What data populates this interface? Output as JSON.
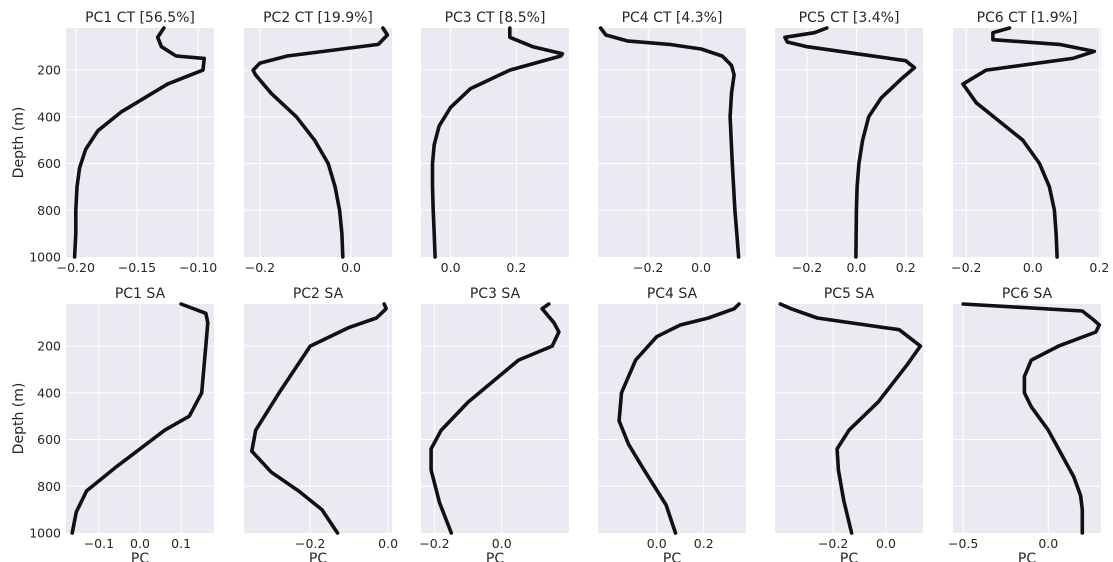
{
  "chart_data": [
    {
      "type": "line",
      "title": "PC1 CT [56.5%]",
      "xlabel": "",
      "ylabel": "Depth (m)",
      "xlim": [
        -0.208,
        -0.087
      ],
      "ylim": [
        1000,
        20
      ],
      "yinvert": true,
      "xticks": [
        {
          "v": -0.2,
          "label": "−0.20"
        },
        {
          "v": -0.15,
          "label": "−0.15"
        },
        {
          "v": -0.1,
          "label": "−0.10"
        }
      ],
      "yticks": [
        {
          "v": 200,
          "label": "200"
        },
        {
          "v": 400,
          "label": "400"
        },
        {
          "v": 600,
          "label": "600"
        },
        {
          "v": 800,
          "label": "800"
        },
        {
          "v": 1000,
          "label": "1000"
        }
      ],
      "x": [
        -0.128,
        -0.133,
        -0.13,
        -0.118,
        -0.095,
        -0.096,
        -0.125,
        -0.163,
        -0.182,
        -0.192,
        -0.197,
        -0.199,
        -0.2,
        -0.2,
        -0.201
      ],
      "depth": [
        20,
        60,
        100,
        140,
        150,
        200,
        260,
        380,
        460,
        540,
        620,
        700,
        800,
        900,
        1000
      ]
    },
    {
      "type": "line",
      "title": "PC2 CT [19.9%]",
      "xlabel": "",
      "ylabel": "",
      "xlim": [
        -0.235,
        0.09
      ],
      "ylim": [
        1000,
        20
      ],
      "yinvert": true,
      "xticks": [
        {
          "v": -0.2,
          "label": "−0.2"
        },
        {
          "v": 0,
          "label": "0.0"
        }
      ],
      "yticks": [],
      "x": [
        0.07,
        0.08,
        0.06,
        -0.14,
        -0.2,
        -0.215,
        -0.21,
        -0.175,
        -0.12,
        -0.08,
        -0.05,
        -0.035,
        -0.025,
        -0.02,
        -0.018
      ],
      "depth": [
        20,
        50,
        90,
        140,
        170,
        200,
        220,
        300,
        400,
        500,
        600,
        700,
        800,
        900,
        1000
      ]
    },
    {
      "type": "line",
      "title": "PC3 CT [8.5%]",
      "xlabel": "",
      "ylabel": "",
      "xlim": [
        -0.09,
        0.36
      ],
      "ylim": [
        1000,
        20
      ],
      "yinvert": true,
      "xticks": [
        {
          "v": 0,
          "label": "0.0"
        },
        {
          "v": 0.2,
          "label": "0.2"
        }
      ],
      "yticks": [],
      "x": [
        0.18,
        0.18,
        0.25,
        0.34,
        0.335,
        0.18,
        0.06,
        0.0,
        -0.035,
        -0.05,
        -0.055,
        -0.055,
        -0.053,
        -0.05,
        -0.047
      ],
      "depth": [
        20,
        60,
        100,
        130,
        140,
        200,
        280,
        360,
        440,
        520,
        600,
        700,
        800,
        900,
        1000
      ]
    },
    {
      "type": "line",
      "title": "PC4 CT [4.3%]",
      "xlabel": "",
      "ylabel": "",
      "xlim": [
        -0.39,
        0.17
      ],
      "ylim": [
        1000,
        20
      ],
      "yinvert": true,
      "xticks": [
        {
          "v": -0.2,
          "label": "−0.2"
        },
        {
          "v": 0,
          "label": "0.0"
        }
      ],
      "yticks": [],
      "x": [
        -0.38,
        -0.36,
        -0.28,
        -0.12,
        0.0,
        0.08,
        0.115,
        0.125,
        0.12,
        0.115,
        0.11,
        0.118,
        0.128,
        0.135,
        0.142
      ],
      "depth": [
        20,
        50,
        75,
        90,
        110,
        140,
        180,
        220,
        260,
        300,
        400,
        600,
        800,
        900,
        1000
      ]
    },
    {
      "type": "line",
      "title": "PC5 CT [3.4%]",
      "xlabel": "",
      "ylabel": "",
      "xlim": [
        -0.33,
        0.27
      ],
      "ylim": [
        1000,
        20
      ],
      "yinvert": true,
      "xticks": [
        {
          "v": -0.2,
          "label": "−0.2"
        },
        {
          "v": 0,
          "label": "0.0"
        },
        {
          "v": 0.2,
          "label": "0.2"
        }
      ],
      "yticks": [],
      "x": [
        -0.12,
        -0.17,
        -0.29,
        -0.28,
        -0.2,
        0.0,
        0.2,
        0.235,
        0.18,
        0.1,
        0.05,
        0.025,
        0.01,
        0.003,
        0.0,
        -0.002
      ],
      "depth": [
        20,
        40,
        60,
        80,
        100,
        130,
        160,
        190,
        240,
        320,
        400,
        500,
        600,
        700,
        800,
        1000
      ]
    },
    {
      "type": "line",
      "title": "PC6 CT [1.9%]",
      "xlabel": "",
      "ylabel": "",
      "xlim": [
        -0.24,
        0.205
      ],
      "ylim": [
        1000,
        20
      ],
      "yinvert": true,
      "xticks": [
        {
          "v": -0.2,
          "label": "−0.2"
        },
        {
          "v": 0,
          "label": "0.0"
        },
        {
          "v": 0.2,
          "label": "0.2"
        }
      ],
      "yticks": [],
      "x": [
        -0.07,
        -0.12,
        -0.12,
        0.08,
        0.185,
        0.12,
        -0.14,
        -0.21,
        -0.17,
        -0.1,
        -0.03,
        0.02,
        0.05,
        0.065,
        0.07,
        0.073
      ],
      "depth": [
        20,
        40,
        70,
        90,
        120,
        150,
        200,
        260,
        340,
        420,
        500,
        600,
        700,
        800,
        900,
        1000
      ]
    },
    {
      "type": "line",
      "title": "PC1 SA",
      "xlabel": "PC",
      "ylabel": "Depth (m)",
      "xlim": [
        -0.18,
        0.18
      ],
      "ylim": [
        1000,
        20
      ],
      "yinvert": true,
      "xticks": [
        {
          "v": -0.1,
          "label": "−0.1"
        },
        {
          "v": 0,
          "label": "0.0"
        },
        {
          "v": 0.1,
          "label": "0.1"
        }
      ],
      "yticks": [
        {
          "v": 200,
          "label": "200"
        },
        {
          "v": 400,
          "label": "400"
        },
        {
          "v": 600,
          "label": "600"
        },
        {
          "v": 800,
          "label": "800"
        },
        {
          "v": 1000,
          "label": "1000"
        }
      ],
      "x": [
        0.1,
        0.16,
        0.165,
        0.16,
        0.15,
        0.12,
        0.06,
        -0.06,
        -0.13,
        -0.155,
        -0.165
      ],
      "depth": [
        20,
        60,
        100,
        200,
        400,
        500,
        560,
        720,
        820,
        910,
        1000
      ]
    },
    {
      "type": "line",
      "title": "PC2 SA",
      "xlabel": "PC",
      "ylabel": "",
      "xlim": [
        -0.37,
        0.01
      ],
      "ylim": [
        1000,
        20
      ],
      "yinvert": true,
      "xticks": [
        {
          "v": -0.2,
          "label": "−0.2"
        },
        {
          "v": 0,
          "label": "0.0"
        }
      ],
      "yticks": [],
      "x": [
        -0.01,
        -0.005,
        -0.03,
        -0.1,
        -0.2,
        -0.28,
        -0.34,
        -0.35,
        -0.3,
        -0.23,
        -0.17,
        -0.13
      ],
      "depth": [
        20,
        40,
        80,
        120,
        200,
        400,
        560,
        650,
        740,
        820,
        900,
        1000
      ]
    },
    {
      "type": "line",
      "title": "PC3 SA",
      "xlabel": "PC",
      "ylabel": "",
      "xlim": [
        -0.24,
        0.2
      ],
      "ylim": [
        1000,
        20
      ],
      "yinvert": true,
      "xticks": [
        {
          "v": -0.2,
          "label": "−0.2"
        },
        {
          "v": 0,
          "label": "0.0"
        }
      ],
      "yticks": [],
      "x": [
        0.14,
        0.12,
        0.155,
        0.17,
        0.15,
        0.05,
        -0.1,
        -0.18,
        -0.21,
        -0.21,
        -0.185,
        -0.15
      ],
      "depth": [
        20,
        40,
        100,
        140,
        200,
        260,
        440,
        560,
        640,
        730,
        870,
        1000
      ]
    },
    {
      "type": "line",
      "title": "PC4 SA",
      "xlabel": "PC",
      "ylabel": "",
      "xlim": [
        -0.25,
        0.38
      ],
      "ylim": [
        1000,
        20
      ],
      "yinvert": true,
      "xticks": [
        {
          "v": 0,
          "label": "0.0"
        },
        {
          "v": 0.2,
          "label": "0.2"
        }
      ],
      "yticks": [],
      "x": [
        0.35,
        0.33,
        0.22,
        0.1,
        0.0,
        -0.09,
        -0.15,
        -0.16,
        -0.12,
        -0.06,
        0.04,
        0.08
      ],
      "depth": [
        20,
        40,
        80,
        110,
        160,
        260,
        400,
        520,
        620,
        720,
        880,
        1000
      ]
    },
    {
      "type": "line",
      "title": "PC5 SA",
      "xlabel": "PC",
      "ylabel": "",
      "xlim": [
        -0.42,
        0.14
      ],
      "ylim": [
        1000,
        20
      ],
      "yinvert": true,
      "xticks": [
        {
          "v": -0.2,
          "label": "−0.2"
        },
        {
          "v": 0,
          "label": "0.0"
        }
      ],
      "yticks": [],
      "x": [
        -0.4,
        -0.36,
        -0.26,
        0.05,
        0.13,
        0.08,
        -0.03,
        -0.14,
        -0.185,
        -0.18,
        -0.16,
        -0.13
      ],
      "depth": [
        20,
        40,
        80,
        130,
        200,
        280,
        440,
        560,
        640,
        730,
        860,
        1000
      ]
    },
    {
      "type": "line",
      "title": "PC6 SA",
      "xlabel": "PC",
      "ylabel": "",
      "xlim": [
        -0.56,
        0.31
      ],
      "ylim": [
        1000,
        20
      ],
      "yinvert": true,
      "xticks": [
        {
          "v": -0.5,
          "label": "−0.5"
        },
        {
          "v": 0,
          "label": "0.0"
        }
      ],
      "yticks": [],
      "x": [
        -0.5,
        0.2,
        0.27,
        0.3,
        0.28,
        0.06,
        -0.1,
        -0.14,
        -0.14,
        -0.1,
        0.0,
        0.15,
        0.19,
        0.2,
        0.2
      ],
      "depth": [
        20,
        50,
        90,
        110,
        140,
        200,
        260,
        330,
        400,
        460,
        560,
        760,
        840,
        900,
        1000
      ]
    }
  ]
}
